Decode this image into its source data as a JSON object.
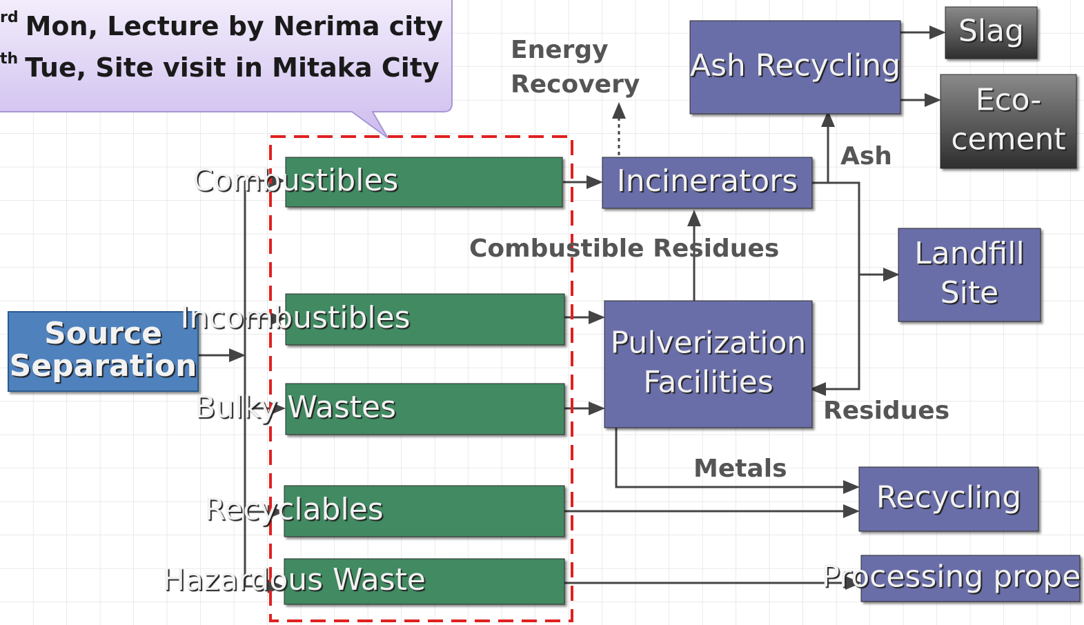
{
  "callout": {
    "lines": [
      {
        "sup": "rd",
        "text": "Mon, Lecture by Nerima city"
      },
      {
        "sup": "th",
        "text": "Tue, Site visit in Mitaka City"
      }
    ]
  },
  "nodes": [
    {
      "id": "source",
      "lines": [
        "Source",
        "Separation"
      ]
    },
    {
      "id": "combustibles",
      "lines": [
        "Combustibles"
      ]
    },
    {
      "id": "incombustibles",
      "lines": [
        "Incombustibles"
      ]
    },
    {
      "id": "bulky",
      "lines": [
        "Bulky Wastes"
      ]
    },
    {
      "id": "recyclables",
      "lines": [
        "Recyclables"
      ]
    },
    {
      "id": "hazardous",
      "lines": [
        "Hazardous Waste"
      ]
    },
    {
      "id": "incinerators",
      "lines": [
        "Incinerators"
      ]
    },
    {
      "id": "pulverization",
      "lines": [
        "Pulverization",
        "Facilities"
      ]
    },
    {
      "id": "ash-recycling",
      "lines": [
        "Ash Recycling"
      ]
    },
    {
      "id": "slag",
      "lines": [
        "Slag"
      ]
    },
    {
      "id": "eco-cement",
      "lines": [
        "Eco-",
        "cement"
      ]
    },
    {
      "id": "landfill",
      "lines": [
        "Landfill",
        "Site"
      ]
    },
    {
      "id": "recycling",
      "lines": [
        "Recycling"
      ]
    },
    {
      "id": "processing",
      "lines": [
        "Processing properly"
      ]
    }
  ],
  "labels": [
    {
      "id": "energy",
      "lines": [
        "Energy",
        "Recovery"
      ]
    },
    {
      "id": "ash",
      "lines": [
        "Ash"
      ]
    },
    {
      "id": "comb-residues",
      "lines": [
        "Combustible Residues"
      ]
    },
    {
      "id": "residues",
      "lines": [
        "Residues"
      ]
    },
    {
      "id": "metals",
      "lines": [
        "Metals"
      ]
    }
  ]
}
